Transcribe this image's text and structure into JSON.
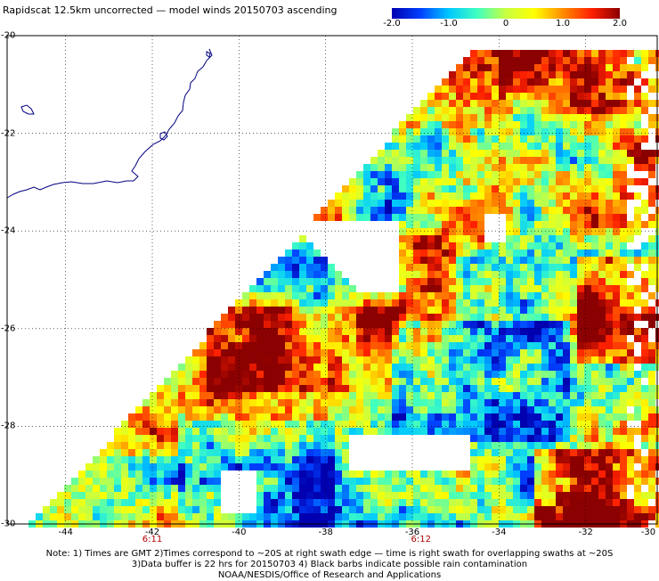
{
  "title": "Rapidscat 12.5km uncorrected — model winds 20150703 ascending",
  "colorbar": {
    "labels": [
      "-2.0",
      "-1.0",
      "0",
      "1.0",
      "2.0"
    ],
    "values": [
      -2.0,
      -1.0,
      0,
      1.0,
      2.0
    ],
    "range": [
      -2.0,
      2.0
    ],
    "colors": [
      "#0000b0",
      "#0040ff",
      "#00c8ff",
      "#40ffc0",
      "#c8ff40",
      "#ffff00",
      "#ff8c00",
      "#ff2000",
      "#8b0000"
    ]
  },
  "map": {
    "lat_range": [
      -30,
      -20
    ],
    "lon_range": [
      -45,
      -30
    ],
    "lat_labels": [
      "-20",
      "-22",
      "-24",
      "-26",
      "-28",
      "-30"
    ],
    "lat_values": [
      -20,
      -22,
      -24,
      -26,
      -28,
      -30
    ],
    "lon_labels": [
      "-44",
      "-42",
      "-40",
      "-38",
      "-36",
      "-34",
      "-32",
      "-30"
    ],
    "lon_values": [
      -44,
      -42,
      -40,
      -38,
      -36,
      -34,
      -32,
      -30
    ],
    "grid": true,
    "coastline_color": "#000080"
  },
  "swath_times": [
    {
      "label": "6:11",
      "lon": -42
    },
    {
      "label": "6:12",
      "lon": -35.8
    }
  ],
  "notes": [
    "Note: 1) Times are GMT 2)Times correspond to ~20S at right swath edge — time is right swath for overlapping swaths at ~20S",
    "3)Data buffer is 22 hrs for 20150703 4) Black barbs indicate possible rain contamination",
    "NOAA/NESDIS/Office of Research and Applications"
  ]
}
